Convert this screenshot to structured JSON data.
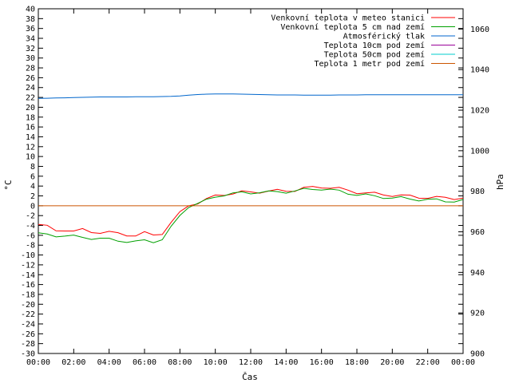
{
  "chart_data": {
    "type": "line",
    "title": "",
    "xlabel": "Čas",
    "ylabel_left": "°C",
    "ylabel_right": "hPa",
    "ylim_left": [
      -30,
      40
    ],
    "ylim_right": [
      900,
      1070
    ],
    "x_ticks": [
      "00:00",
      "02:00",
      "04:00",
      "06:00",
      "08:00",
      "10:00",
      "12:00",
      "14:00",
      "16:00",
      "18:00",
      "20:00",
      "22:00",
      "00:00"
    ],
    "y_left_ticks": [
      40,
      38,
      36,
      34,
      32,
      30,
      28,
      26,
      24,
      22,
      20,
      18,
      16,
      14,
      12,
      10,
      8,
      6,
      4,
      2,
      0,
      -2,
      -4,
      -6,
      -8,
      -10,
      -12,
      -14,
      -16,
      -18,
      -20,
      -22,
      -24,
      -26,
      -28,
      -30
    ],
    "y_right_ticks": [
      1060,
      1040,
      1020,
      1000,
      980,
      960,
      940,
      920,
      900
    ],
    "legend_position": "top-right",
    "grid": false,
    "x_hours": [
      0,
      0.5,
      1,
      1.5,
      2,
      2.5,
      3,
      3.5,
      4,
      4.5,
      5,
      5.5,
      6,
      6.5,
      7,
      7.5,
      8,
      8.5,
      9,
      9.5,
      10,
      10.5,
      11,
      11.5,
      12,
      12.5,
      13,
      13.5,
      14,
      14.5,
      15,
      15.5,
      16,
      16.5,
      17,
      17.5,
      18,
      18.5,
      19,
      19.5,
      20,
      20.5,
      21,
      21.5,
      22,
      22.5,
      23,
      23.5,
      24
    ],
    "series": [
      {
        "name": "Venkovní teplota v meteo stanici",
        "color": "#ff0000",
        "axis": "left",
        "values": [
          -3.8,
          -4.3,
          -5.0,
          -4.8,
          -5.3,
          -4.9,
          -5.2,
          -5.4,
          -5.5,
          -5.6,
          -5.8,
          -6.1,
          -5.6,
          -5.9,
          -5.5,
          -3.5,
          -1.5,
          0.2,
          0.6,
          1.2,
          2.0,
          2.4,
          2.5,
          2.7,
          2.8,
          2.9,
          2.9,
          3.0,
          3.1,
          3.2,
          3.5,
          3.7,
          3.9,
          3.7,
          3.4,
          3.1,
          2.8,
          2.6,
          2.4,
          2.3,
          2.2,
          2.0,
          1.9,
          1.8,
          1.7,
          1.6,
          1.6,
          1.6,
          1.6
        ]
      },
      {
        "name": "Venkovní teplota 5 cm nad zemí",
        "color": "#00a000",
        "axis": "left",
        "values": [
          -5.8,
          -5.9,
          -6.0,
          -6.1,
          -6.3,
          -6.4,
          -6.5,
          -6.7,
          -6.9,
          -7.0,
          -7.2,
          -7.4,
          -7.1,
          -7.2,
          -6.8,
          -4.5,
          -2.0,
          0.0,
          0.4,
          1.0,
          1.9,
          2.3,
          2.4,
          2.6,
          2.7,
          2.8,
          2.7,
          2.8,
          2.9,
          3.0,
          3.2,
          3.4,
          3.5,
          3.2,
          2.9,
          2.6,
          2.3,
          2.1,
          1.9,
          1.8,
          1.6,
          1.5,
          1.4,
          1.3,
          1.2,
          1.1,
          1.0,
          1.0,
          1.0
        ]
      },
      {
        "name": "Atmosférický tlak",
        "color": "#0066cc",
        "axis": "right",
        "values": [
          1025.8,
          1025.9,
          1026.0,
          1026.1,
          1026.2,
          1026.3,
          1026.4,
          1026.5,
          1026.5,
          1026.5,
          1026.5,
          1026.6,
          1026.6,
          1026.6,
          1026.7,
          1026.8,
          1027.0,
          1027.4,
          1027.7,
          1027.9,
          1028.0,
          1028.0,
          1028.0,
          1027.9,
          1027.8,
          1027.7,
          1027.6,
          1027.5,
          1027.5,
          1027.5,
          1027.4,
          1027.4,
          1027.4,
          1027.4,
          1027.5,
          1027.5,
          1027.5,
          1027.6,
          1027.6,
          1027.6,
          1027.6,
          1027.6,
          1027.6,
          1027.6,
          1027.6,
          1027.6,
          1027.6,
          1027.6,
          1027.6
        ]
      },
      {
        "name": "Teplota 10cm pod zemí",
        "color": "#990099",
        "axis": "left",
        "values": []
      },
      {
        "name": "Teplota 50cm pod zemí",
        "color": "#00cccc",
        "axis": "left",
        "values": []
      },
      {
        "name": "Teplota 1 metr pod zemí",
        "color": "#cc5500",
        "axis": "left",
        "values": [
          0.0,
          0.0,
          0.0,
          0.0,
          0.0,
          0.0,
          0.0,
          0.0,
          0.0,
          0.0,
          0.0,
          0.0,
          0.0,
          0.0,
          0.0,
          0.0,
          0.0,
          0.0,
          0.0,
          0.0,
          0.0,
          0.0,
          0.0,
          0.0,
          0.0,
          0.0,
          0.0,
          0.0,
          0.0,
          0.0,
          0.0,
          0.0,
          0.0,
          0.0,
          0.0,
          0.0,
          0.0,
          0.0,
          0.0,
          0.0,
          0.0,
          0.0,
          0.0,
          0.0,
          0.0,
          0.0,
          0.0,
          0.0,
          0.0
        ]
      }
    ]
  }
}
